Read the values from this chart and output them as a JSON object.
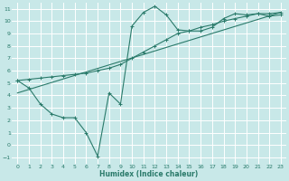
{
  "xlabel": "Humidex (Indice chaleur)",
  "bg_color": "#c8e8e8",
  "grid_color": "#ffffff",
  "line_color": "#2a7a6a",
  "xlim": [
    -0.5,
    23.5
  ],
  "ylim": [
    -1.5,
    11.5
  ],
  "xticks": [
    0,
    1,
    2,
    3,
    4,
    5,
    6,
    7,
    8,
    9,
    10,
    11,
    12,
    13,
    14,
    15,
    16,
    17,
    18,
    19,
    20,
    21,
    22,
    23
  ],
  "yticks": [
    -1,
    0,
    1,
    2,
    3,
    4,
    5,
    6,
    7,
    8,
    9,
    10,
    11
  ],
  "series1_x": [
    0,
    1,
    2,
    3,
    4,
    5,
    6,
    7,
    8,
    9,
    10,
    11,
    12,
    13,
    14,
    15,
    16,
    17,
    18,
    19,
    20,
    21,
    22,
    23
  ],
  "series1_y": [
    5.2,
    4.6,
    3.3,
    2.5,
    2.2,
    2.2,
    1.0,
    -0.9,
    4.2,
    3.3,
    9.6,
    10.7,
    11.2,
    10.5,
    9.3,
    9.2,
    9.2,
    9.5,
    10.2,
    10.6,
    10.5,
    10.6,
    10.4,
    10.5
  ],
  "series2_x": [
    0,
    1,
    2,
    3,
    4,
    5,
    6,
    7,
    8,
    9,
    10,
    11,
    12,
    13,
    14,
    15,
    16,
    17,
    18,
    19,
    20,
    21,
    22,
    23
  ],
  "series2_y": [
    5.2,
    5.3,
    5.4,
    5.5,
    5.6,
    5.7,
    5.8,
    6.0,
    6.2,
    6.5,
    7.0,
    7.5,
    8.0,
    8.5,
    9.0,
    9.2,
    9.5,
    9.7,
    10.0,
    10.2,
    10.4,
    10.6,
    10.6,
    10.7
  ],
  "series3_x": [
    0,
    23
  ],
  "series3_y": [
    4.2,
    10.7
  ]
}
